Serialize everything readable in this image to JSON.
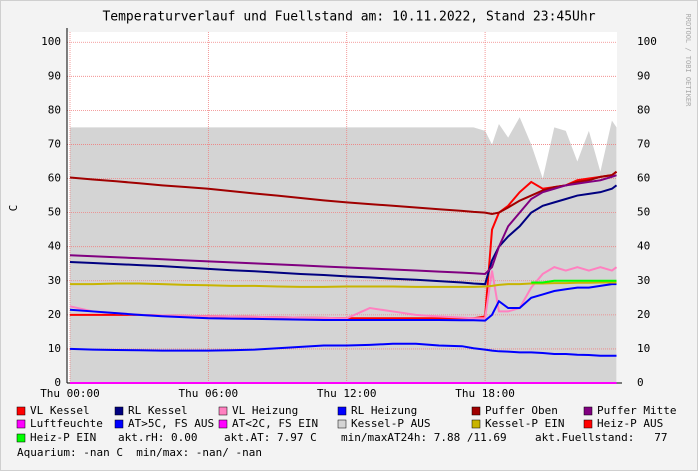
{
  "chart_data": {
    "type": "line",
    "title": "Temperaturverlauf und Fuellstand am: 10.11.2022, Stand 23:45Uhr",
    "y_label": "C",
    "watermark": "RRDTOOL / TOBI OETIKER",
    "x": [
      0,
      1,
      2,
      3,
      4,
      5,
      6,
      7,
      8,
      9,
      10,
      11,
      12,
      13,
      14,
      15,
      16,
      17,
      17.5,
      18,
      18.3,
      18.6,
      19,
      19.5,
      20,
      20.5,
      21,
      21.5,
      22,
      22.5,
      23,
      23.5,
      23.7
    ],
    "xlim": [
      -0.13,
      23.72
    ],
    "xticks": [
      {
        "value": 0,
        "label": "Thu 00:00"
      },
      {
        "value": 6,
        "label": "Thu 06:00"
      },
      {
        "value": 12,
        "label": "Thu 12:00"
      },
      {
        "value": 18,
        "label": "Thu 18:00"
      }
    ],
    "ylim": [
      0,
      103
    ],
    "yticks": [
      0,
      10,
      20,
      30,
      40,
      50,
      60,
      70,
      80,
      90,
      100
    ],
    "grid": true,
    "series": [
      {
        "name": "VL Kessel",
        "color": "#ff0000",
        "values": [
          20,
          20,
          20,
          20,
          19.8,
          19.7,
          19.6,
          19.5,
          19.4,
          19.3,
          19.2,
          19.1,
          19,
          19,
          19,
          19,
          19,
          19,
          19,
          19.5,
          45,
          50,
          52,
          56,
          59,
          57,
          57.5,
          58,
          59.5,
          60,
          60.5,
          61,
          62
        ]
      },
      {
        "name": "RL Kessel",
        "color": "#000080",
        "values": [
          35.5,
          35.2,
          34.9,
          34.6,
          34.3,
          33.9,
          33.5,
          33.1,
          32.8,
          32.4,
          32,
          31.7,
          31.3,
          31,
          30.6,
          30.3,
          29.9,
          29.5,
          29.2,
          29,
          36,
          40,
          43,
          46,
          50,
          52,
          53,
          54,
          55,
          55.5,
          56,
          57,
          58
        ]
      },
      {
        "name": "VL Heizung",
        "color": "#ff80c0",
        "values": [
          22.5,
          21,
          20.5,
          20,
          19.8,
          19.7,
          19.6,
          19.5,
          19.4,
          19.3,
          19.2,
          19.1,
          19,
          22,
          21,
          20,
          19.5,
          19.2,
          19,
          19,
          33,
          21,
          21,
          22,
          28,
          32,
          34,
          33,
          34,
          33,
          34,
          33,
          34
        ]
      },
      {
        "name": "RL Heizung",
        "color": "#0000ff",
        "values": [
          21.5,
          21,
          20.5,
          20,
          19.6,
          19.3,
          19,
          18.9,
          18.8,
          18.7,
          18.6,
          18.5,
          18.5,
          18.5,
          18.5,
          18.5,
          18.5,
          18.4,
          18.4,
          18.3,
          20,
          24,
          22,
          22,
          25,
          26,
          27,
          27.5,
          28,
          28,
          28.5,
          29,
          29
        ]
      },
      {
        "name": "Puffer Oben",
        "color": "#a00000",
        "values": [
          60.3,
          59.7,
          59.2,
          58.6,
          58,
          57.5,
          57,
          56.3,
          55.6,
          55,
          54.3,
          53.6,
          53,
          52.5,
          52,
          51.5,
          51,
          50.5,
          50.2,
          50,
          49.6,
          50,
          51.5,
          53.5,
          55,
          56.5,
          57.5,
          58,
          59,
          59.5,
          60.5,
          61,
          62
        ]
      },
      {
        "name": "Puffer Mitte",
        "color": "#800080",
        "values": [
          37.5,
          37.2,
          36.9,
          36.6,
          36.3,
          36,
          35.7,
          35.4,
          35.1,
          34.8,
          34.5,
          34.2,
          33.9,
          33.6,
          33.3,
          33,
          32.7,
          32.4,
          32.2,
          32,
          34,
          40,
          46,
          50,
          54,
          56,
          57,
          58,
          58.5,
          59,
          59.5,
          60.5,
          61
        ]
      },
      {
        "name": "Luftfeuchte",
        "color": "#ff00ff",
        "values": [
          0,
          0,
          0,
          0,
          0,
          0,
          0,
          0,
          0,
          0,
          0,
          0,
          0,
          0,
          0,
          0,
          0,
          0,
          0,
          0,
          0,
          0,
          0,
          0,
          0,
          0,
          0,
          0,
          0,
          0,
          0,
          0,
          0
        ]
      },
      {
        "name": "AT>5C, FS AUS",
        "color": "#0000ff",
        "values": [
          10,
          9.8,
          9.7,
          9.6,
          9.5,
          9.5,
          9.5,
          9.6,
          9.8,
          10.2,
          10.6,
          11,
          11,
          11.2,
          11.5,
          11.5,
          11,
          10.8,
          10.2,
          9.8,
          9.5,
          9.3,
          9.2,
          9,
          9,
          8.8,
          8.5,
          8.5,
          8.3,
          8.2,
          8,
          8,
          8
        ]
      },
      {
        "name": "AT<2C, FS EIN",
        "color": "#ff00ff",
        "values": [
          null,
          null,
          null,
          null,
          null,
          null,
          null,
          null,
          null,
          null,
          null,
          null,
          null,
          null,
          null,
          null,
          null,
          null,
          null,
          null,
          null,
          null,
          null,
          null,
          null,
          null,
          null,
          null,
          null,
          null,
          null,
          null,
          null
        ]
      },
      {
        "name": "Kessel-P AUS",
        "color": "#d4d4d4",
        "area": true,
        "values": [
          75,
          75,
          75,
          75,
          75,
          75,
          75,
          75,
          75,
          75,
          75,
          75,
          75,
          75,
          75,
          75,
          75,
          75,
          75,
          74,
          70,
          76,
          72,
          78,
          70,
          60,
          75,
          74,
          65,
          74,
          62,
          77,
          75
        ]
      },
      {
        "name": "Kessel-P EIN",
        "color": "#c8b400",
        "values": [
          29,
          29,
          29.2,
          29.2,
          29,
          28.8,
          28.7,
          28.5,
          28.5,
          28.3,
          28.2,
          28.2,
          28.3,
          28.3,
          28.3,
          28.2,
          28.2,
          28.2,
          28.2,
          28.3,
          28.5,
          28.8,
          29,
          29,
          29.2,
          29.2,
          29.3,
          29.3,
          29.4,
          29.4,
          29.5,
          29.5,
          29.5
        ]
      },
      {
        "name": "Heiz-P AUS",
        "color": "#ff0000",
        "values": [
          null,
          null,
          null,
          null,
          null,
          null,
          null,
          null,
          null,
          null,
          null,
          null,
          null,
          null,
          null,
          null,
          null,
          null,
          null,
          null,
          null,
          null,
          null,
          null,
          null,
          null,
          null,
          null,
          null,
          null,
          null,
          null,
          null
        ]
      },
      {
        "name": "Heiz-P EIN",
        "color": "#00ff00",
        "values": [
          null,
          null,
          null,
          null,
          null,
          null,
          null,
          null,
          null,
          null,
          null,
          null,
          null,
          null,
          null,
          null,
          null,
          null,
          null,
          null,
          null,
          null,
          null,
          null,
          29.5,
          29.5,
          30,
          30,
          30,
          30,
          30,
          30,
          30
        ]
      }
    ],
    "notes": [
      "akt.rH: 0.00",
      "akt.AT: 7.97 C",
      "min/maxAT24h: 7.88 /11.69",
      "akt.Fuellstand:   77",
      "Aquarium: -nan C  min/max: -nan/ -nan"
    ]
  }
}
